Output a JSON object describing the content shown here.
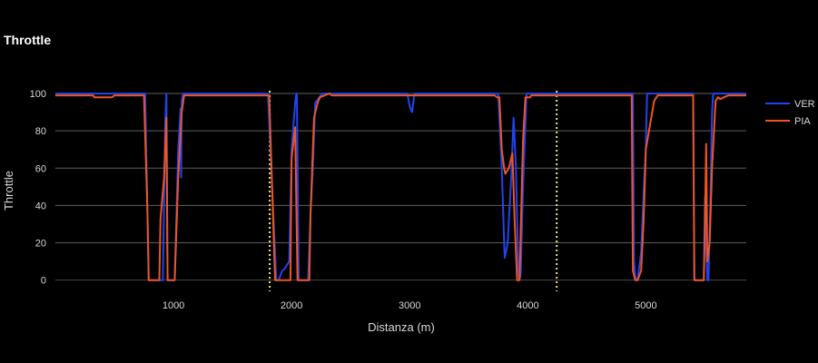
{
  "chart_data": {
    "type": "line",
    "title": "Throttle",
    "xlabel": "Distanza (m)",
    "ylabel": "Throttle",
    "xlim": [
      0,
      5850
    ],
    "ylim": [
      -6,
      101
    ],
    "xticks": [
      1000,
      2000,
      3000,
      4000,
      5000
    ],
    "xtick_labels": [
      "1000",
      "2000",
      "3000",
      "4000",
      "5000"
    ],
    "yticks": [
      0,
      20,
      40,
      60,
      80,
      100
    ],
    "ytick_labels": [
      "0",
      "20",
      "40",
      "60",
      "80",
      "100"
    ],
    "grid": "y-major",
    "legend_position": "right",
    "vlines": [
      {
        "x": 1815,
        "color": "#e8e87a",
        "style": "dotted"
      },
      {
        "x": 4245,
        "color": "#e8e87a",
        "style": "dotted"
      }
    ],
    "series": [
      {
        "name": "VER",
        "color": "#2244ee",
        "points": [
          [
            0,
            100
          ],
          [
            760,
            100
          ],
          [
            790,
            0
          ],
          [
            800,
            0
          ],
          [
            910,
            0
          ],
          [
            930,
            85
          ],
          [
            940,
            100
          ],
          [
            950,
            0
          ],
          [
            960,
            0
          ],
          [
            1010,
            0
          ],
          [
            1040,
            70
          ],
          [
            1060,
            92
          ],
          [
            1065,
            55
          ],
          [
            1070,
            96
          ],
          [
            1080,
            100
          ],
          [
            1800,
            100
          ],
          [
            1870,
            0
          ],
          [
            1890,
            0
          ],
          [
            1920,
            5
          ],
          [
            1940,
            6
          ],
          [
            1960,
            8
          ],
          [
            1980,
            10
          ],
          [
            2000,
            70
          ],
          [
            2030,
            95
          ],
          [
            2040,
            100
          ],
          [
            2045,
            100
          ],
          [
            2060,
            0
          ],
          [
            2080,
            0
          ],
          [
            2140,
            0
          ],
          [
            2160,
            35
          ],
          [
            2180,
            60
          ],
          [
            2200,
            95
          ],
          [
            2260,
            100
          ],
          [
            2980,
            100
          ],
          [
            3000,
            93
          ],
          [
            3020,
            90
          ],
          [
            3040,
            100
          ],
          [
            3750,
            100
          ],
          [
            3780,
            60
          ],
          [
            3800,
            20
          ],
          [
            3805,
            12
          ],
          [
            3830,
            20
          ],
          [
            3860,
            55
          ],
          [
            3880,
            87
          ],
          [
            3900,
            60
          ],
          [
            3920,
            5
          ],
          [
            3930,
            0
          ],
          [
            3940,
            3
          ],
          [
            3960,
            50
          ],
          [
            3990,
            100
          ],
          [
            4870,
            100
          ],
          [
            4890,
            100
          ],
          [
            4900,
            10
          ],
          [
            4910,
            2
          ],
          [
            4920,
            0
          ],
          [
            4930,
            0
          ],
          [
            4960,
            15
          ],
          [
            4980,
            45
          ],
          [
            5000,
            72
          ],
          [
            5010,
            100
          ],
          [
            5030,
            100
          ],
          [
            5400,
            100
          ],
          [
            5410,
            0
          ],
          [
            5420,
            0
          ],
          [
            5490,
            0
          ],
          [
            5500,
            45
          ],
          [
            5510,
            20
          ],
          [
            5520,
            0
          ],
          [
            5530,
            0
          ],
          [
            5550,
            55
          ],
          [
            5560,
            90
          ],
          [
            5570,
            100
          ],
          [
            5850,
            100
          ]
        ]
      },
      {
        "name": "PIA",
        "color": "#ee5522",
        "points": [
          [
            0,
            99
          ],
          [
            320,
            99
          ],
          [
            330,
            98
          ],
          [
            480,
            98
          ],
          [
            500,
            99
          ],
          [
            750,
            99
          ],
          [
            780,
            35
          ],
          [
            790,
            0
          ],
          [
            800,
            0
          ],
          [
            880,
            0
          ],
          [
            890,
            33
          ],
          [
            920,
            55
          ],
          [
            940,
            87
          ],
          [
            950,
            0
          ],
          [
            960,
            0
          ],
          [
            1010,
            0
          ],
          [
            1040,
            55
          ],
          [
            1070,
            90
          ],
          [
            1090,
            99
          ],
          [
            1810,
            99
          ],
          [
            1860,
            0
          ],
          [
            1880,
            0
          ],
          [
            1990,
            0
          ],
          [
            2000,
            65
          ],
          [
            2030,
            82
          ],
          [
            2050,
            0
          ],
          [
            2070,
            0
          ],
          [
            2150,
            0
          ],
          [
            2160,
            35
          ],
          [
            2190,
            87
          ],
          [
            2220,
            95
          ],
          [
            2240,
            98
          ],
          [
            2320,
            100
          ],
          [
            2340,
            99
          ],
          [
            3720,
            99
          ],
          [
            3740,
            98
          ],
          [
            3760,
            98
          ],
          [
            3780,
            70
          ],
          [
            3800,
            60
          ],
          [
            3810,
            57
          ],
          [
            3840,
            60
          ],
          [
            3870,
            68
          ],
          [
            3890,
            30
          ],
          [
            3910,
            0
          ],
          [
            3930,
            0
          ],
          [
            3960,
            75
          ],
          [
            3980,
            98
          ],
          [
            4020,
            98
          ],
          [
            4030,
            99
          ],
          [
            4880,
            99
          ],
          [
            4890,
            5
          ],
          [
            4910,
            0
          ],
          [
            4930,
            0
          ],
          [
            4960,
            5
          ],
          [
            4980,
            30
          ],
          [
            5000,
            70
          ],
          [
            5040,
            85
          ],
          [
            5070,
            96
          ],
          [
            5100,
            99
          ],
          [
            5400,
            99
          ],
          [
            5410,
            0
          ],
          [
            5420,
            0
          ],
          [
            5490,
            0
          ],
          [
            5500,
            30
          ],
          [
            5510,
            73
          ],
          [
            5520,
            10
          ],
          [
            5540,
            20
          ],
          [
            5560,
            60
          ],
          [
            5590,
            96
          ],
          [
            5610,
            98
          ],
          [
            5630,
            97
          ],
          [
            5660,
            98
          ],
          [
            5700,
            99
          ],
          [
            5850,
            99
          ]
        ]
      }
    ]
  }
}
